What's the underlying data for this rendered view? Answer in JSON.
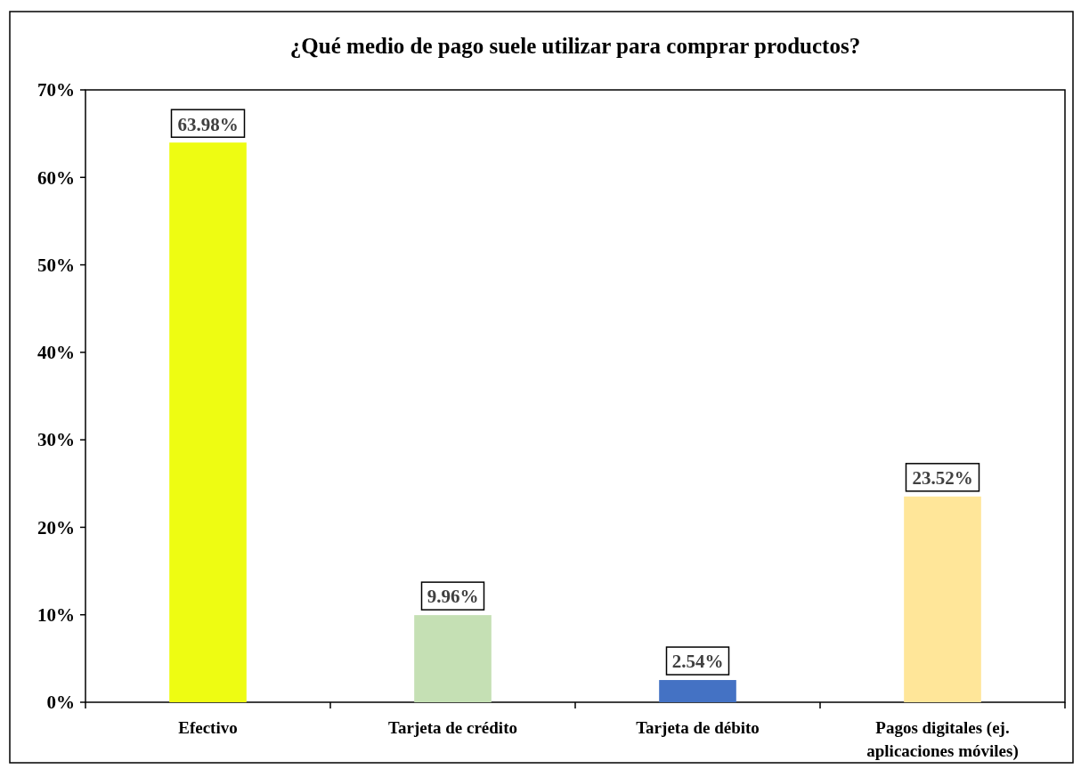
{
  "chart_data": {
    "type": "bar",
    "title": "¿Qué medio de pago suele utilizar para comprar productos?",
    "categories": [
      "Efectivo",
      "Tarjeta de crédito",
      "Tarjeta de débito",
      "Pagos digitales (ej. aplicaciones móviles)"
    ],
    "values": [
      63.98,
      9.96,
      2.54,
      23.52
    ],
    "colors": [
      "#eefc12",
      "#c5e0b4",
      "#4472c4",
      "#ffe699"
    ],
    "value_labels": [
      "63.98%",
      "9.96%",
      "2.54%",
      "23.52%"
    ],
    "ylim": [
      0,
      70
    ],
    "yticks": [
      {
        "value": 0,
        "label": "0%"
      },
      {
        "value": 10,
        "label": "10%"
      },
      {
        "value": 20,
        "label": "20%"
      },
      {
        "value": 30,
        "label": "30%"
      },
      {
        "value": 40,
        "label": "40%"
      },
      {
        "value": 50,
        "label": "50%"
      },
      {
        "value": 60,
        "label": "60%"
      },
      {
        "value": 70,
        "label": "70%"
      }
    ],
    "grid": false
  }
}
